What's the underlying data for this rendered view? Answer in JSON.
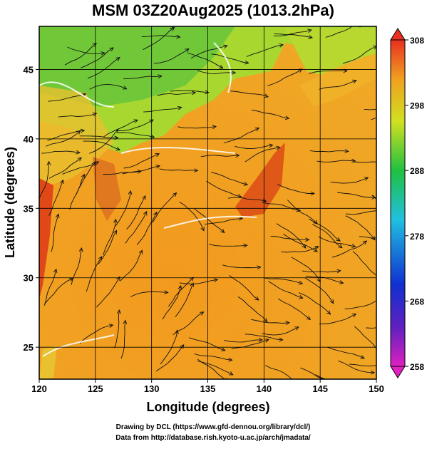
{
  "chart_data": {
    "type": "map",
    "title": "MSM 03Z20Aug2025 (1013.2hPa)",
    "xlabel": "Longitude (degrees)",
    "ylabel": "Latitude  (degrees)",
    "xlim": [
      120,
      150
    ],
    "xticks": [
      120,
      125,
      130,
      135,
      140,
      145,
      150
    ],
    "ylim": [
      22.7,
      48.1
    ],
    "yticks": [
      25,
      30,
      35,
      40,
      45
    ],
    "grid": true,
    "colorbar": {
      "lim": [
        258,
        308
      ],
      "ticks": [
        258,
        268,
        278,
        288,
        298,
        308
      ]
    },
    "credits": [
      "Drawing by DCL (https://www.gfd-dennou.org/library/dcl/)",
      "Data from http://database.rish.kyoto-u.ac.jp/arch/jmadata/"
    ]
  }
}
